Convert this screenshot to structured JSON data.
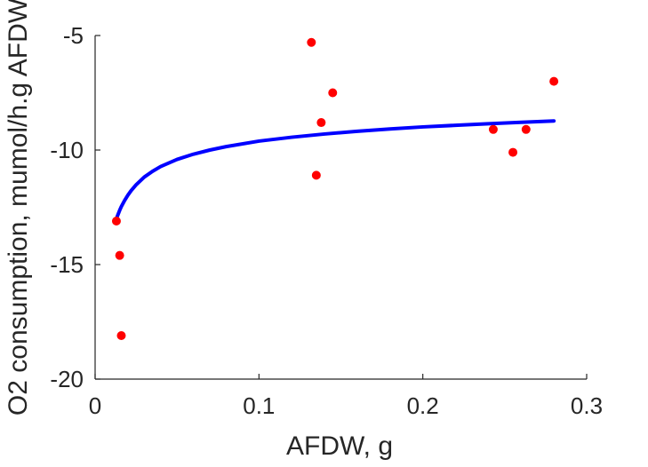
{
  "chart_data": {
    "type": "scatter",
    "title": "",
    "xlabel": "AFDW, g",
    "ylabel": "O2 consumption, mumol/h.g AFDW",
    "xlim": [
      0,
      0.3
    ],
    "ylim": [
      -20,
      -5
    ],
    "x_ticks": [
      0,
      0.1,
      0.2,
      0.3
    ],
    "x_tick_labels": [
      "0",
      "0.1",
      "0.2",
      "0.3"
    ],
    "y_ticks": [
      -5,
      -10,
      -15,
      -20
    ],
    "y_tick_labels": [
      "-5",
      "-10",
      "-15",
      "-20"
    ],
    "grid": false,
    "legend": "none",
    "axes": "left-bottom",
    "series": [
      {
        "kind": "points",
        "color": "#ff0000",
        "marker": "filled-circle",
        "x": [
          0.013,
          0.015,
          0.016,
          0.132,
          0.135,
          0.138,
          0.145,
          0.243,
          0.255,
          0.263,
          0.28
        ],
        "y": [
          -13.1,
          -14.6,
          -18.1,
          -5.3,
          -11.1,
          -8.8,
          -7.5,
          -9.1,
          -10.1,
          -9.1,
          -7.0
        ]
      },
      {
        "kind": "fitted-curve",
        "color": "#0000ff",
        "x": [
          0.013,
          0.014,
          0.015,
          0.016,
          0.018,
          0.02,
          0.022,
          0.025,
          0.03,
          0.035,
          0.04,
          0.05,
          0.06,
          0.07,
          0.08,
          0.1,
          0.12,
          0.14,
          0.16,
          0.18,
          0.2,
          0.22,
          0.24,
          0.26,
          0.28
        ],
        "y": [
          -13.0,
          -12.81,
          -12.63,
          -12.47,
          -12.2,
          -11.97,
          -11.77,
          -11.52,
          -11.18,
          -10.93,
          -10.72,
          -10.41,
          -10.18,
          -10.0,
          -9.85,
          -9.61,
          -9.44,
          -9.3,
          -9.18,
          -9.08,
          -8.99,
          -8.92,
          -8.85,
          -8.79,
          -8.73
        ]
      }
    ]
  }
}
